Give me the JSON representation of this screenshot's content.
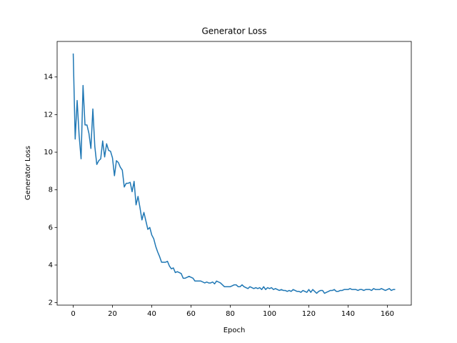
{
  "chart_data": {
    "type": "line",
    "title": "Generator Loss",
    "xlabel": "Epoch",
    "ylabel": "Generator Loss",
    "color": "#1f77b4",
    "x": [
      0,
      1,
      2,
      3,
      4,
      5,
      6,
      7,
      8,
      9,
      10,
      11,
      12,
      13,
      14,
      15,
      16,
      17,
      18,
      19,
      20,
      21,
      22,
      23,
      24,
      25,
      26,
      27,
      28,
      29,
      30,
      31,
      32,
      33,
      34,
      35,
      36,
      37,
      38,
      39,
      40,
      41,
      42,
      43,
      44,
      45,
      46,
      47,
      48,
      49,
      50,
      51,
      52,
      53,
      54,
      55,
      56,
      57,
      58,
      59,
      60,
      61,
      62,
      63,
      64,
      65,
      66,
      67,
      68,
      69,
      70,
      71,
      72,
      73,
      74,
      75,
      76,
      77,
      78,
      79,
      80,
      81,
      82,
      83,
      84,
      85,
      86,
      87,
      88,
      89,
      90,
      91,
      92,
      93,
      94,
      95,
      96,
      97,
      98,
      99,
      100,
      101,
      102,
      103,
      104,
      105,
      106,
      107,
      108,
      109,
      110,
      111,
      112,
      113,
      114,
      115,
      116,
      117,
      118,
      119,
      120,
      121,
      122,
      123,
      124,
      125,
      126,
      127,
      128,
      129,
      130,
      131,
      132,
      133,
      134,
      135,
      136,
      137,
      138,
      139,
      140,
      141,
      142,
      143,
      144,
      145,
      146,
      147,
      148,
      149,
      150,
      151,
      152,
      153,
      154,
      155,
      156,
      157,
      158,
      159,
      160,
      161,
      162,
      163,
      164
    ],
    "values": [
      15.25,
      10.7,
      12.75,
      10.9,
      9.65,
      13.55,
      11.45,
      11.45,
      11.0,
      10.2,
      12.3,
      10.3,
      9.35,
      9.55,
      9.65,
      10.6,
      9.75,
      10.45,
      10.1,
      10.05,
      9.7,
      8.75,
      9.55,
      9.45,
      9.2,
      9.05,
      8.15,
      8.35,
      8.35,
      8.4,
      7.9,
      8.45,
      7.2,
      7.65,
      7.05,
      6.4,
      6.8,
      6.35,
      5.9,
      6.0,
      5.6,
      5.4,
      5.0,
      4.7,
      4.45,
      4.15,
      4.15,
      4.15,
      4.2,
      3.95,
      3.8,
      3.85,
      3.6,
      3.65,
      3.6,
      3.55,
      3.3,
      3.3,
      3.35,
      3.4,
      3.35,
      3.3,
      3.15,
      3.15,
      3.15,
      3.15,
      3.1,
      3.05,
      3.1,
      3.05,
      3.05,
      3.1,
      3.0,
      3.15,
      3.1,
      3.05,
      2.95,
      2.85,
      2.85,
      2.85,
      2.85,
      2.9,
      2.95,
      2.95,
      2.85,
      2.85,
      2.95,
      2.85,
      2.8,
      2.75,
      2.85,
      2.8,
      2.75,
      2.8,
      2.75,
      2.8,
      2.7,
      2.85,
      2.7,
      2.8,
      2.75,
      2.8,
      2.7,
      2.75,
      2.7,
      2.65,
      2.7,
      2.65,
      2.65,
      2.6,
      2.65,
      2.6,
      2.7,
      2.65,
      2.6,
      2.6,
      2.55,
      2.65,
      2.6,
      2.55,
      2.7,
      2.55,
      2.7,
      2.6,
      2.5,
      2.6,
      2.65,
      2.65,
      2.5,
      2.55,
      2.6,
      2.65,
      2.65,
      2.7,
      2.6,
      2.6,
      2.65,
      2.65,
      2.7,
      2.7,
      2.7,
      2.75,
      2.7,
      2.7,
      2.7,
      2.65,
      2.7,
      2.7,
      2.65,
      2.7,
      2.7,
      2.7,
      2.65,
      2.75,
      2.7,
      2.7,
      2.7,
      2.75,
      2.7,
      2.65,
      2.7,
      2.75,
      2.65,
      2.7,
      2.7
    ],
    "xlim": [
      -8.2,
      172.2
    ],
    "ylim": [
      1.87,
      15.89
    ],
    "xticks": [
      0,
      20,
      40,
      60,
      80,
      100,
      120,
      140,
      160
    ],
    "yticks": [
      2,
      4,
      6,
      8,
      10,
      12,
      14
    ]
  }
}
